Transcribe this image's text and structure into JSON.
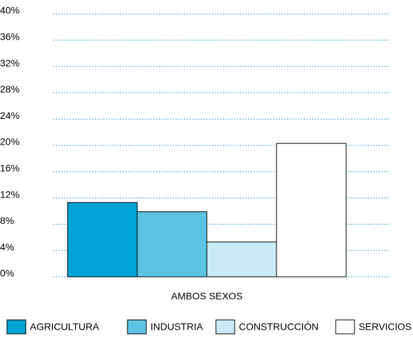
{
  "chart_data": {
    "type": "bar",
    "categories": [
      "AMBOS SEXOS"
    ],
    "series": [
      {
        "name": "AGRICULTURA",
        "color": "#00a3d4",
        "values": [
          11.3
        ]
      },
      {
        "name": "INDUSTRIA",
        "color": "#5bc4e5",
        "values": [
          9.9
        ]
      },
      {
        "name": "CONSTRUCCIÓN",
        "color": "#c9eaf6",
        "values": [
          5.3
        ]
      },
      {
        "name": "SERVICIOS",
        "color": "#ffffff",
        "values": [
          20.3
        ]
      }
    ],
    "ylim": [
      0,
      40
    ],
    "yticks": [
      {
        "value": 0,
        "label": "0%"
      },
      {
        "value": 4,
        "label": "4%"
      },
      {
        "value": 8,
        "label": "8%"
      },
      {
        "value": 12,
        "label": "12%"
      },
      {
        "value": 16,
        "label": "16%"
      },
      {
        "value": 20,
        "label": "20%"
      },
      {
        "value": 24,
        "label": "24%"
      },
      {
        "value": 28,
        "label": "28%"
      },
      {
        "value": 32,
        "label": "32%"
      },
      {
        "value": 36,
        "label": "36%"
      },
      {
        "value": 40,
        "label": "40%"
      }
    ],
    "grid": true
  }
}
